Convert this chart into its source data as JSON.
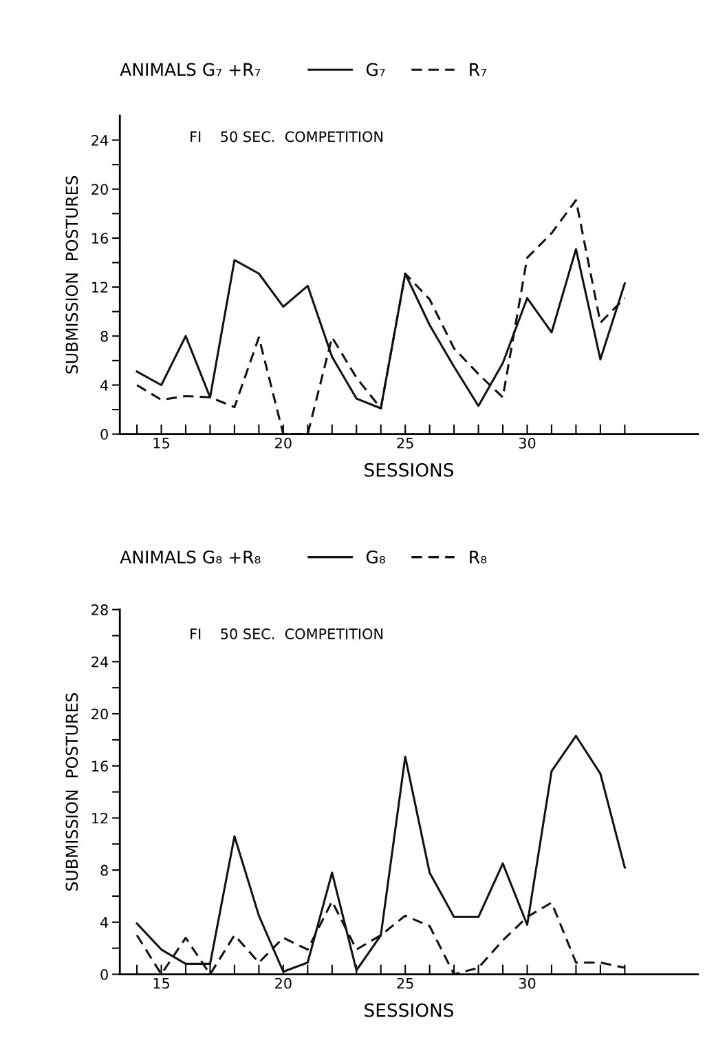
{
  "chart_data": [
    {
      "type": "line",
      "title": "ANIMALS G₇ +R₇",
      "subtitle": "FI    50 SEC.  COMPETITION",
      "xlabel": "SESSIONS",
      "ylabel": "SUBMISSION  POSTURES",
      "x": [
        14,
        15,
        16,
        17,
        18,
        19,
        20,
        21,
        22,
        23,
        24,
        25,
        26,
        27,
        28,
        29,
        30,
        31,
        32,
        33,
        34
      ],
      "series": [
        {
          "name": "G₇",
          "color": "#111111",
          "line_style": "solid",
          "values": [
            5.1,
            4.0,
            8.0,
            3.0,
            14.2,
            13.1,
            10.4,
            12.1,
            6.3,
            2.9,
            2.1,
            13.1,
            8.9,
            5.5,
            2.3,
            5.8,
            11.1,
            8.3,
            15.1,
            6.1,
            12.3
          ]
        },
        {
          "name": "R₇",
          "color": "#111111",
          "line_style": "dashed",
          "values": [
            4.0,
            2.8,
            3.1,
            3.0,
            2.2,
            7.9,
            0,
            0,
            7.9,
            4.6,
            2.1,
            13.1,
            11.0,
            7.0,
            4.9,
            3.0,
            14.4,
            16.4,
            19.1,
            9.1,
            11.1
          ]
        }
      ],
      "xlim": [
        13.3,
        37
      ],
      "xticks": [
        {
          "value": 14,
          "label": null
        },
        15,
        {
          "value": 16,
          "label": null
        },
        {
          "value": 17,
          "label": null
        },
        {
          "value": 18,
          "label": null
        },
        {
          "value": 19,
          "label": null
        },
        20,
        {
          "value": 21,
          "label": null
        },
        {
          "value": 22,
          "label": null
        },
        {
          "value": 23,
          "label": null
        },
        {
          "value": 24,
          "label": null
        },
        25,
        {
          "value": 26,
          "label": null
        },
        {
          "value": 27,
          "label": null
        },
        {
          "value": 28,
          "label": null
        },
        {
          "value": 29,
          "label": null
        },
        30,
        {
          "value": 31,
          "label": null
        },
        {
          "value": 32,
          "label": null
        },
        {
          "value": 33,
          "label": null
        },
        {
          "value": 34,
          "label": null
        }
      ],
      "ylim": [
        0,
        26
      ],
      "yticks": [
        0,
        {
          "value": 2,
          "label": null
        },
        4,
        {
          "value": 6,
          "label": null
        },
        8,
        {
          "value": 10,
          "label": null
        },
        12,
        {
          "value": 14,
          "label": null
        },
        16,
        {
          "value": 18,
          "label": null
        },
        20,
        {
          "value": 22,
          "label": null
        },
        24
      ],
      "legend": "top",
      "grid": false
    },
    {
      "type": "line",
      "title": "ANIMALS G₈ +R₈",
      "subtitle": "FI    50 SEC.  COMPETITION",
      "xlabel": "SESSIONS",
      "ylabel": "SUBMISSION  POSTURES",
      "x": [
        14,
        15,
        16,
        17,
        18,
        19,
        20,
        21,
        22,
        23,
        24,
        25,
        26,
        27,
        28,
        29,
        30,
        31,
        32,
        33,
        34
      ],
      "series": [
        {
          "name": "G₈",
          "color": "#111111",
          "line_style": "solid",
          "values": [
            3.9,
            1.9,
            0.8,
            0.8,
            10.6,
            4.5,
            0.2,
            0.9,
            7.8,
            0.3,
            3.0,
            16.7,
            7.8,
            4.4,
            4.4,
            8.5,
            3.8,
            15.6,
            18.3,
            15.4,
            8.2
          ]
        },
        {
          "name": "R₈",
          "color": "#111111",
          "line_style": "dashed",
          "values": [
            3.0,
            0,
            2.8,
            0,
            3.0,
            0.9,
            2.8,
            1.9,
            5.6,
            1.9,
            3.0,
            4.5,
            3.7,
            0,
            0.5,
            2.6,
            4.4,
            5.5,
            0.9,
            0.9,
            0.5
          ]
        }
      ],
      "xlim": [
        13.3,
        37
      ],
      "xticks": [
        {
          "value": 14,
          "label": null
        },
        15,
        {
          "value": 16,
          "label": null
        },
        {
          "value": 17,
          "label": null
        },
        {
          "value": 18,
          "label": null
        },
        {
          "value": 19,
          "label": null
        },
        20,
        {
          "value": 21,
          "label": null
        },
        {
          "value": 22,
          "label": null
        },
        {
          "value": 23,
          "label": null
        },
        {
          "value": 24,
          "label": null
        },
        25,
        {
          "value": 26,
          "label": null
        },
        {
          "value": 27,
          "label": null
        },
        {
          "value": 28,
          "label": null
        },
        {
          "value": 29,
          "label": null
        },
        30,
        {
          "value": 31,
          "label": null
        },
        {
          "value": 32,
          "label": null
        },
        {
          "value": 33,
          "label": null
        },
        {
          "value": 34,
          "label": null
        }
      ],
      "ylim": [
        0,
        28
      ],
      "yticks": [
        0,
        {
          "value": 2,
          "label": null
        },
        4,
        {
          "value": 6,
          "label": null
        },
        8,
        {
          "value": 10,
          "label": null
        },
        12,
        {
          "value": 14,
          "label": null
        },
        16,
        {
          "value": 18,
          "label": null
        },
        20,
        {
          "value": 22,
          "label": null
        },
        24,
        {
          "value": 26,
          "label": null
        },
        28
      ],
      "legend": "top",
      "grid": false
    }
  ]
}
